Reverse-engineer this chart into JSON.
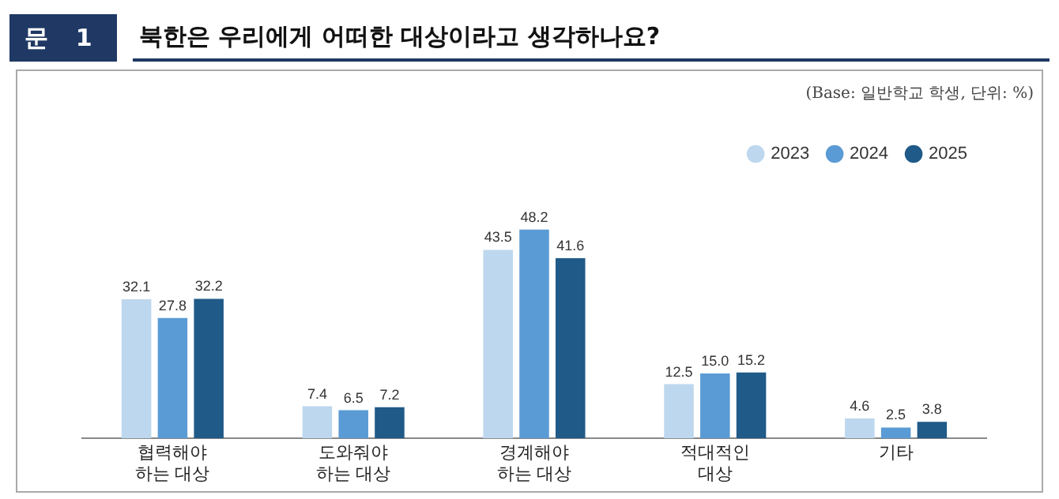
{
  "chart_data": {
    "type": "bar",
    "title": "북한은 우리에게 어떠한 대상이라고 생각하나요?",
    "annotations": [
      "문 1",
      "(Base: 일반학교 학생, 단위: %)"
    ],
    "categories": [
      "협력해야\n하는 대상",
      "도와줘야\n하는 대상",
      "경계해야\n하는 대상",
      "적대적인\n대상",
      "기타"
    ],
    "series": [
      {
        "name": "2023",
        "color": "#bdd7ee",
        "values": [
          32.1,
          7.4,
          43.5,
          12.5,
          4.6
        ],
        "value_labels": [
          "32.1",
          "7.4",
          "43.5",
          "12.5",
          "4.6"
        ]
      },
      {
        "name": "2024",
        "color": "#5b9bd5",
        "values": [
          27.8,
          6.5,
          48.2,
          15.0,
          2.5
        ],
        "value_labels": [
          "27.8",
          "6.5",
          "48.2",
          "15.0",
          "2.5"
        ]
      },
      {
        "name": "2025",
        "color": "#1f5a88",
        "values": [
          32.2,
          7.2,
          41.6,
          15.2,
          3.8
        ],
        "value_labels": [
          "32.2",
          "7.2",
          "41.6",
          "15.2",
          "3.8"
        ]
      }
    ],
    "relative": false,
    "legend": "top right",
    "grid": false
  }
}
